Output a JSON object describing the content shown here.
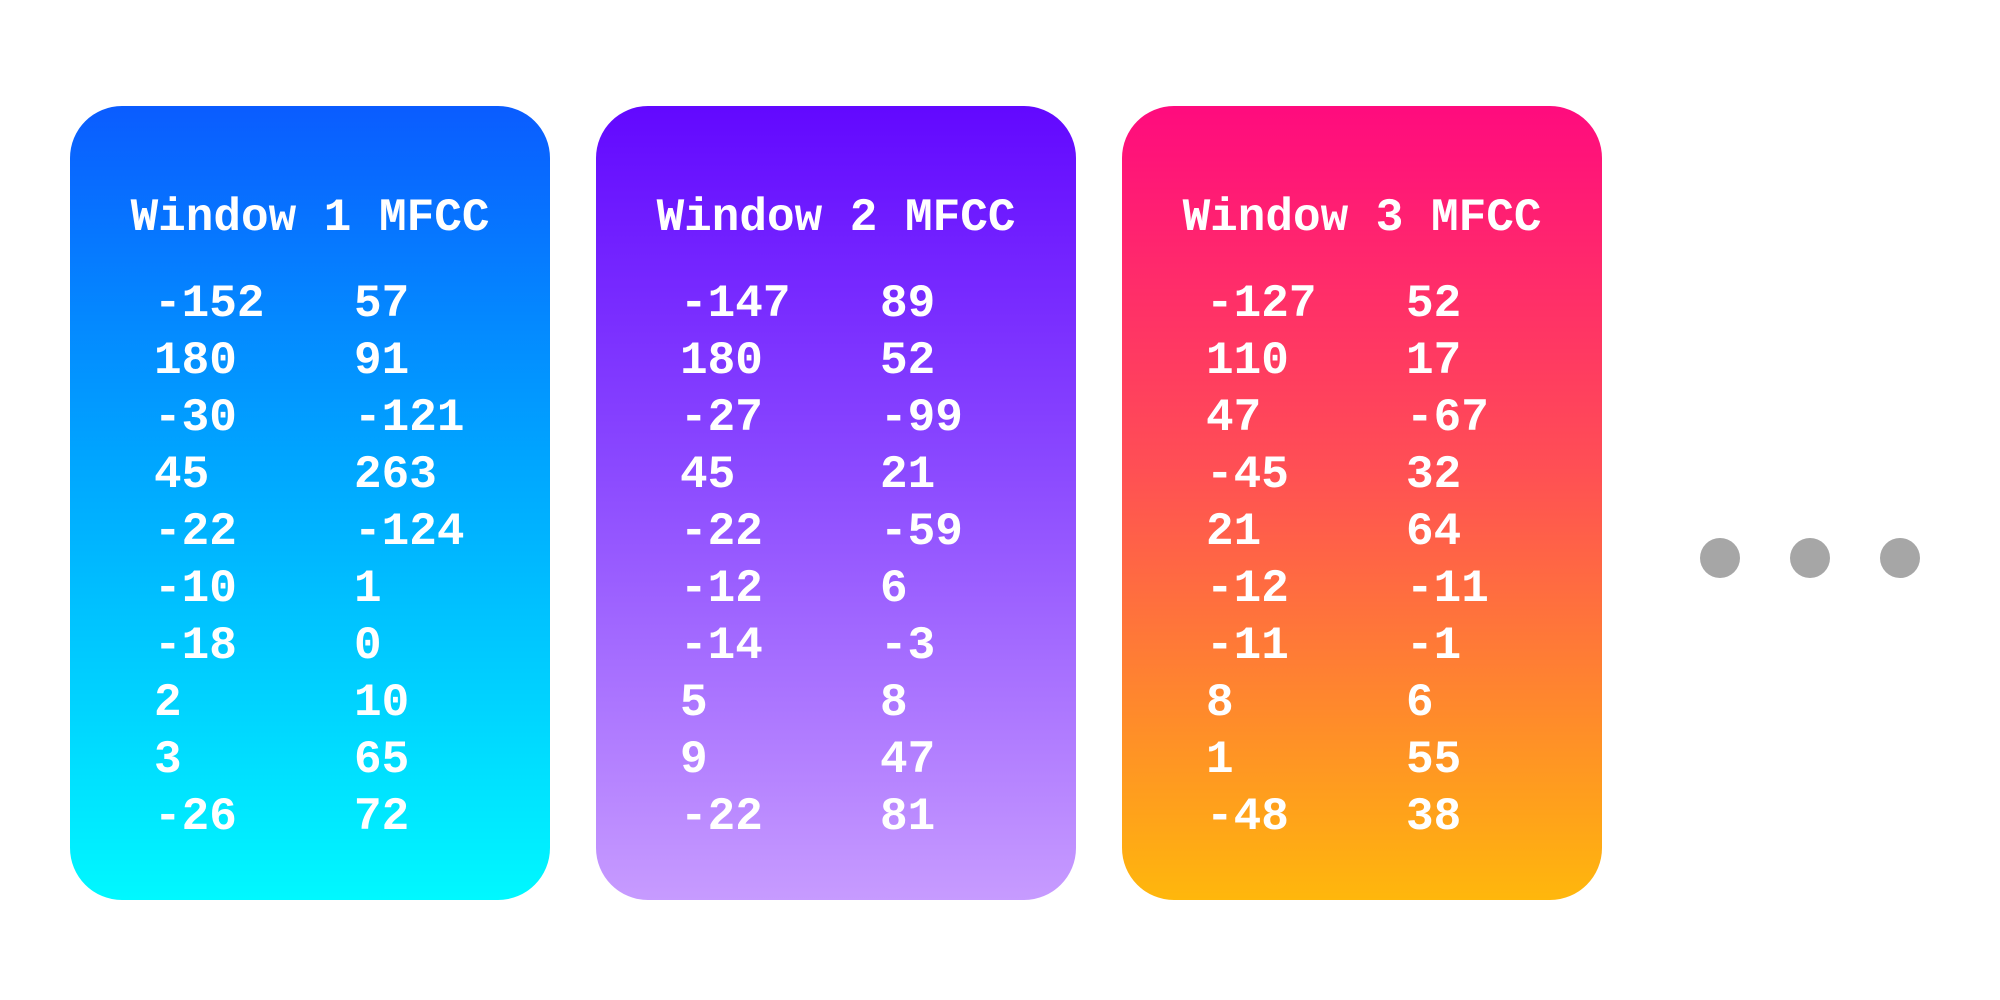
{
  "cards": [
    {
      "title": "Window 1 MFCC",
      "gradient": [
        "#0a5cff",
        "#00a6ff",
        "#00f8ff"
      ],
      "rows": [
        [
          "-152",
          "57"
        ],
        [
          "180",
          "91"
        ],
        [
          "-30",
          "-121"
        ],
        [
          "45",
          "263"
        ],
        [
          "-22",
          "-124"
        ],
        [
          "-10",
          "1"
        ],
        [
          "-18",
          "0"
        ],
        [
          "2",
          "10"
        ],
        [
          "3",
          "65"
        ],
        [
          "-26",
          "72"
        ]
      ]
    },
    {
      "title": "Window 2 MFCC",
      "gradient": [
        "#6208ff",
        "#8a48ff",
        "#c79bff"
      ],
      "rows": [
        [
          "-147",
          "89"
        ],
        [
          "180",
          "52"
        ],
        [
          "-27",
          "-99"
        ],
        [
          "45",
          "21"
        ],
        [
          "-22",
          "-59"
        ],
        [
          "-12",
          "6"
        ],
        [
          "-14",
          "-3"
        ],
        [
          "5",
          "8"
        ],
        [
          "9",
          "47"
        ],
        [
          "-22",
          "81"
        ]
      ]
    },
    {
      "title": "Window 3 MFCC",
      "gradient": [
        "#ff0b7e",
        "#ff4e55",
        "#ffb70c"
      ],
      "rows": [
        [
          "-127",
          "52"
        ],
        [
          "110",
          "17"
        ],
        [
          "47",
          "-67"
        ],
        [
          "-45",
          "32"
        ],
        [
          "21",
          "64"
        ],
        [
          "-12",
          "-11"
        ],
        [
          "-11",
          "-1"
        ],
        [
          "8",
          "6"
        ],
        [
          "1",
          "55"
        ],
        [
          "-48",
          "38"
        ]
      ]
    }
  ],
  "ellipsis": {
    "icon": "ellipsis-icon",
    "dot_color": "#a6a6a6"
  }
}
